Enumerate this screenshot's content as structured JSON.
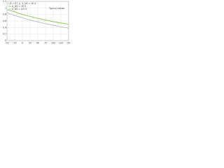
{
  "chart_data": {
    "type": "line",
    "title": "I_D = f(T_j), V_GS = 10 V",
    "annotation": "Typical values",
    "x": [
      -50,
      -25,
      0,
      25,
      50,
      75,
      100,
      125,
      150
    ],
    "series": [
      {
        "name": "V_GS = 10 V",
        "color": "#7cc242",
        "values": [
          0.95,
          0.88,
          0.8,
          0.74,
          0.68,
          0.63,
          0.58,
          0.54,
          0.5
        ]
      },
      {
        "name": "V_GS = 4.5 V",
        "color": "#a8b4b8",
        "values": [
          0.85,
          0.77,
          0.7,
          0.63,
          0.57,
          0.52,
          0.47,
          0.42,
          0.38
        ]
      }
    ],
    "xlim": [
      -50,
      150
    ],
    "xticks": [
      -50,
      -25,
      0,
      25,
      50,
      75,
      100,
      125,
      150
    ],
    "ylim": [
      0,
      1.2
    ],
    "yticks": [
      0,
      0.2,
      0.4,
      0.6,
      0.8,
      1,
      1.2
    ],
    "grid": true
  }
}
